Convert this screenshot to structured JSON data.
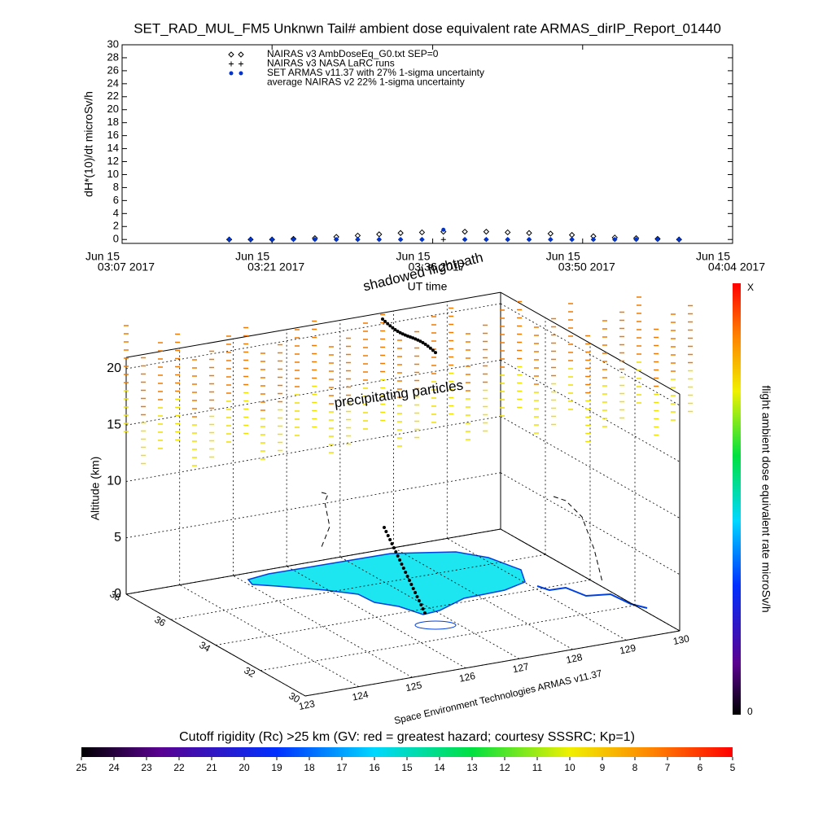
{
  "chart_data": [
    {
      "type": "scatter",
      "title": "SET_RAD_MUL_FM5 Unknwn Tail#  ambient dose equivalent rate ARMAS_dirIP_Report_01440",
      "y_label": "dH*(10)/dt microSv/h",
      "x_label": "UT time",
      "x": [
        "2017-06-15T03:17",
        "2017-06-15T03:19",
        "2017-06-15T03:21",
        "2017-06-15T03:23",
        "2017-06-15T03:25",
        "2017-06-15T03:27",
        "2017-06-15T03:29",
        "2017-06-15T03:31",
        "2017-06-15T03:33",
        "2017-06-15T03:35",
        "2017-06-15T03:37",
        "2017-06-15T03:39",
        "2017-06-15T03:41",
        "2017-06-15T03:43",
        "2017-06-15T03:45",
        "2017-06-15T03:47",
        "2017-06-15T03:49",
        "2017-06-15T03:51",
        "2017-06-15T03:53",
        "2017-06-15T03:55",
        "2017-06-15T03:57",
        "2017-06-15T03:59"
      ],
      "series": [
        {
          "name": "NAIRAS v3 AmbDoseEq_G0.txt SEP=0",
          "marker": "diamond",
          "color": "#000000",
          "values": [
            0,
            0,
            0,
            0.1,
            0.2,
            0.4,
            0.6,
            0.8,
            1.0,
            1.1,
            1.2,
            1.2,
            1.2,
            1.1,
            1.0,
            0.9,
            0.7,
            0.5,
            0.3,
            0.2,
            0.1,
            0
          ]
        },
        {
          "name": "NAIRAS v3 NASA LaRC runs",
          "marker": "plus",
          "color": "#000000",
          "values": [
            0,
            0,
            0,
            0,
            0,
            0,
            0,
            0,
            0,
            0,
            0,
            0,
            0,
            0,
            0,
            0,
            0,
            0,
            0,
            0,
            0,
            0
          ]
        },
        {
          "name": "SET ARMAS v11.37 with 27% 1-sigma uncertainty",
          "marker": "dot",
          "color": "#0033cc",
          "values": [
            0,
            0,
            0,
            0,
            0,
            0,
            0,
            0,
            0,
            0,
            1.5,
            0,
            0,
            0,
            0,
            0,
            0,
            0,
            0,
            0,
            0,
            0
          ]
        },
        {
          "name": "average NAIRAS v2 22% 1-sigma uncertainty",
          "marker": "none",
          "color": "#000000",
          "values": [
            null,
            null,
            null,
            null,
            null,
            null,
            null,
            null,
            null,
            null,
            null,
            null,
            null,
            null,
            null,
            null,
            null,
            null,
            null,
            null,
            null,
            null
          ]
        }
      ],
      "xlim": [
        "2017-06-15T03:07",
        "2017-06-15T04:04"
      ],
      "xticks": [
        {
          "value": "2017-06-15T03:07",
          "label": [
            "Jun 15",
            "03:07 2017"
          ]
        },
        {
          "value": "2017-06-15T03:21",
          "label": [
            "Jun 15",
            "03:21 2017"
          ]
        },
        {
          "value": "2017-06-15T03:36",
          "label": [
            "Jun 15",
            "03:36 2017"
          ]
        },
        {
          "value": "2017-06-15T03:50",
          "label": [
            "Jun 15",
            "03:50 2017"
          ]
        },
        {
          "value": "2017-06-15T04:04",
          "label": [
            "Jun 15",
            "04:04 2017"
          ]
        }
      ],
      "ylim": [
        -0.6,
        30
      ],
      "yticks": [
        0,
        2,
        4,
        6,
        8,
        10,
        12,
        14,
        16,
        18,
        20,
        22,
        24,
        26,
        28,
        30
      ],
      "grid": false
    },
    {
      "type": "scatter3d",
      "z_label": "Altitude (km)",
      "zlim": [
        0,
        21
      ],
      "zticks": [
        0,
        5,
        10,
        15,
        20
      ],
      "xlim": [
        123,
        130
      ],
      "xticks": [
        123,
        124,
        125,
        126,
        127,
        128,
        129,
        130
      ],
      "ylim": [
        30,
        38
      ],
      "yticks": [
        30,
        32,
        34,
        36,
        38
      ],
      "annotations": [
        "shadowed flightpath",
        "precipitating particles"
      ],
      "credit": "Space Environment Technologies ARMAS v11.37"
    },
    {
      "type": "colorbar",
      "title": "Cutoff rigidity (Rc) >25 km (GV: red = greatest hazard; courtesy SSSRC; Kp=1)",
      "lim": [
        25,
        5
      ],
      "ticks": [
        25,
        24,
        23,
        22,
        21,
        20,
        19,
        18,
        17,
        16,
        15,
        14,
        13,
        12,
        11,
        10,
        9,
        8,
        7,
        6,
        5
      ]
    },
    {
      "type": "colorbar",
      "label": "flight ambient dose equivalent rate microSv/h",
      "tick_labels": [
        "0",
        "X"
      ]
    }
  ]
}
